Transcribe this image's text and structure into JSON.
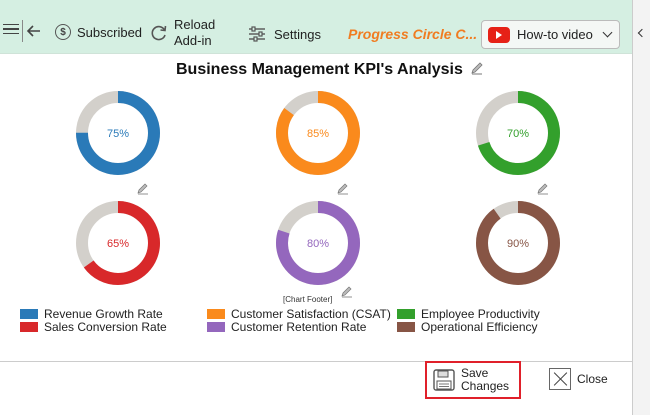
{
  "toolbar": {
    "subscribed_label": "Subscribed",
    "reload_label_line1": "Reload",
    "reload_label_line2": "Add-in",
    "settings_label": "Settings",
    "addin_title": "Progress Circle C...",
    "howto_label": "How-to video",
    "accent": "#f07c21"
  },
  "chart": {
    "title": "Business Management KPI's Analysis",
    "footer": "[Chart Footer]"
  },
  "chart_data": {
    "type": "pie",
    "title": "Business Management KPI's Analysis",
    "series": [
      {
        "name": "Revenue Growth Rate",
        "value": 75,
        "label": "75%",
        "color": "#2a7ab8"
      },
      {
        "name": "Customer Satisfaction (CSAT)",
        "value": 85,
        "label": "85%",
        "color": "#fa8a1c"
      },
      {
        "name": "Employee Productivity",
        "value": 70,
        "label": "70%",
        "color": "#33a02c"
      },
      {
        "name": "Sales Conversion Rate",
        "value": 65,
        "label": "65%",
        "color": "#d8282a"
      },
      {
        "name": "Customer Retention Rate",
        "value": 80,
        "label": "80%",
        "color": "#9467bd"
      },
      {
        "name": "Operational Efficiency",
        "value": 90,
        "label": "90%",
        "color": "#875545"
      }
    ],
    "remainder_color": "#d3d0cb"
  },
  "footer_buttons": {
    "save_line1": "Save",
    "save_line2": "Changes",
    "close": "Close"
  }
}
